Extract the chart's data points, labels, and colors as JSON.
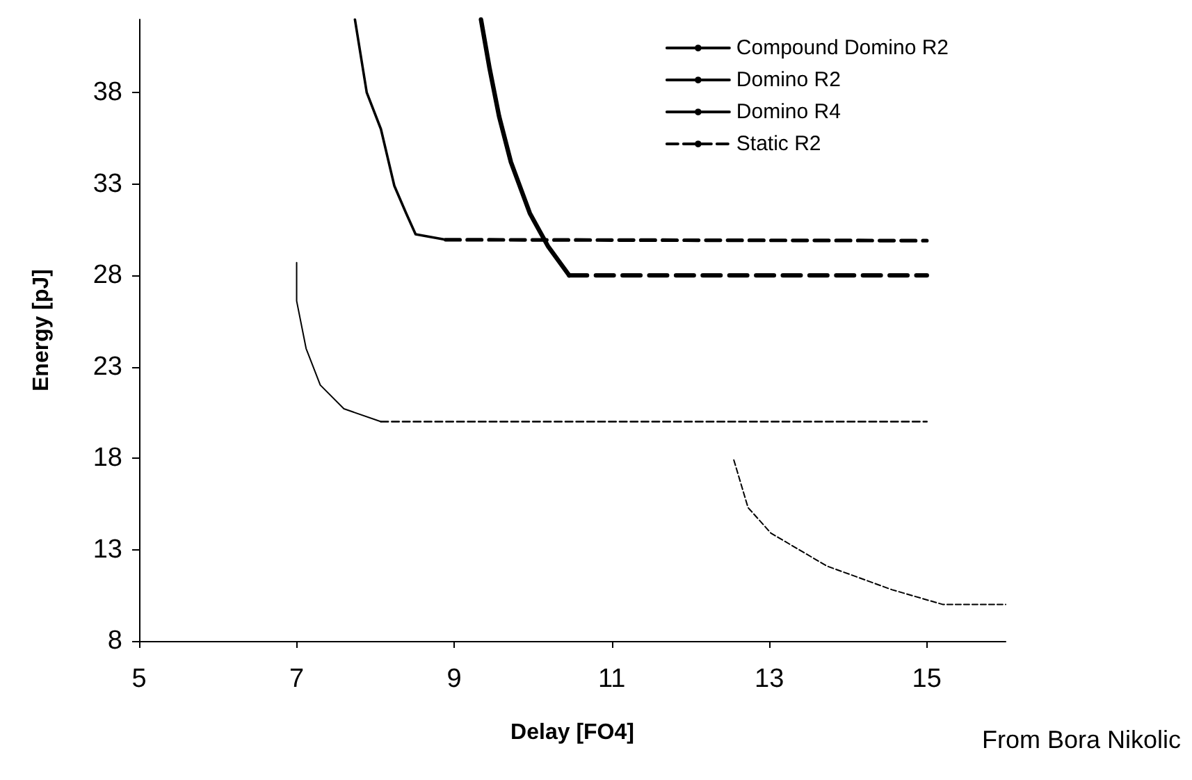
{
  "chart_data": {
    "type": "line",
    "xlabel": "Delay [FO4]",
    "ylabel": "Energy [pJ]",
    "xlim": [
      5,
      16
    ],
    "xticks": [
      5,
      7,
      9,
      11,
      13,
      15
    ],
    "ylim": [
      8,
      42
    ],
    "yticks": [
      8,
      13,
      18,
      23,
      28,
      33,
      38
    ],
    "grid": false,
    "legend": "top right",
    "marker": "none",
    "annotations": [
      "From Bora Nikolic"
    ],
    "series": [
      {
        "name": "Compound Domino R2",
        "color": "#000000",
        "line_style": "solid",
        "x": [
          7.74,
          7.89,
          8.07,
          8.24,
          8.39,
          8.51,
          8.89
        ],
        "values": [
          42,
          38.0,
          36.0,
          32.9,
          31.4,
          30.25,
          29.95
        ]
      },
      {
        "name": "Domino R2",
        "color": "#000000",
        "line_style": "solid",
        "x": [
          9.34,
          9.45,
          9.57,
          9.72,
          9.96,
          10.19,
          10.46
        ],
        "values": [
          42,
          39.3,
          36.7,
          34.2,
          31.4,
          29.6,
          28.0
        ]
      },
      {
        "name": "Domino R4",
        "color": "#000000",
        "line_style": "solid",
        "x": [
          7.0,
          7.0,
          7.12,
          7.3,
          7.6,
          8.07
        ],
        "values": [
          28.7,
          26.6,
          24.0,
          22.0,
          20.7,
          20.0
        ]
      },
      {
        "name": "Static R2",
        "color": "#000000",
        "line_style": "dashed",
        "x": [
          12.55,
          12.73,
          13.02,
          13.73,
          14.56,
          15.2,
          16
        ],
        "values": [
          17.9,
          15.3,
          13.9,
          12.1,
          10.8,
          10.0,
          10.0
        ]
      },
      {
        "color": "#000000",
        "line_style": "dashed",
        "x": [
          8.89,
          15
        ],
        "values": [
          29.95,
          29.9
        ]
      },
      {
        "color": "#000000",
        "line_style": "dashed",
        "x": [
          10.46,
          15
        ],
        "values": [
          28.0,
          28.0
        ]
      },
      {
        "color": "#000000",
        "line_style": "dashed",
        "x": [
          8.07,
          15
        ],
        "values": [
          20.0,
          20.0
        ]
      }
    ]
  }
}
